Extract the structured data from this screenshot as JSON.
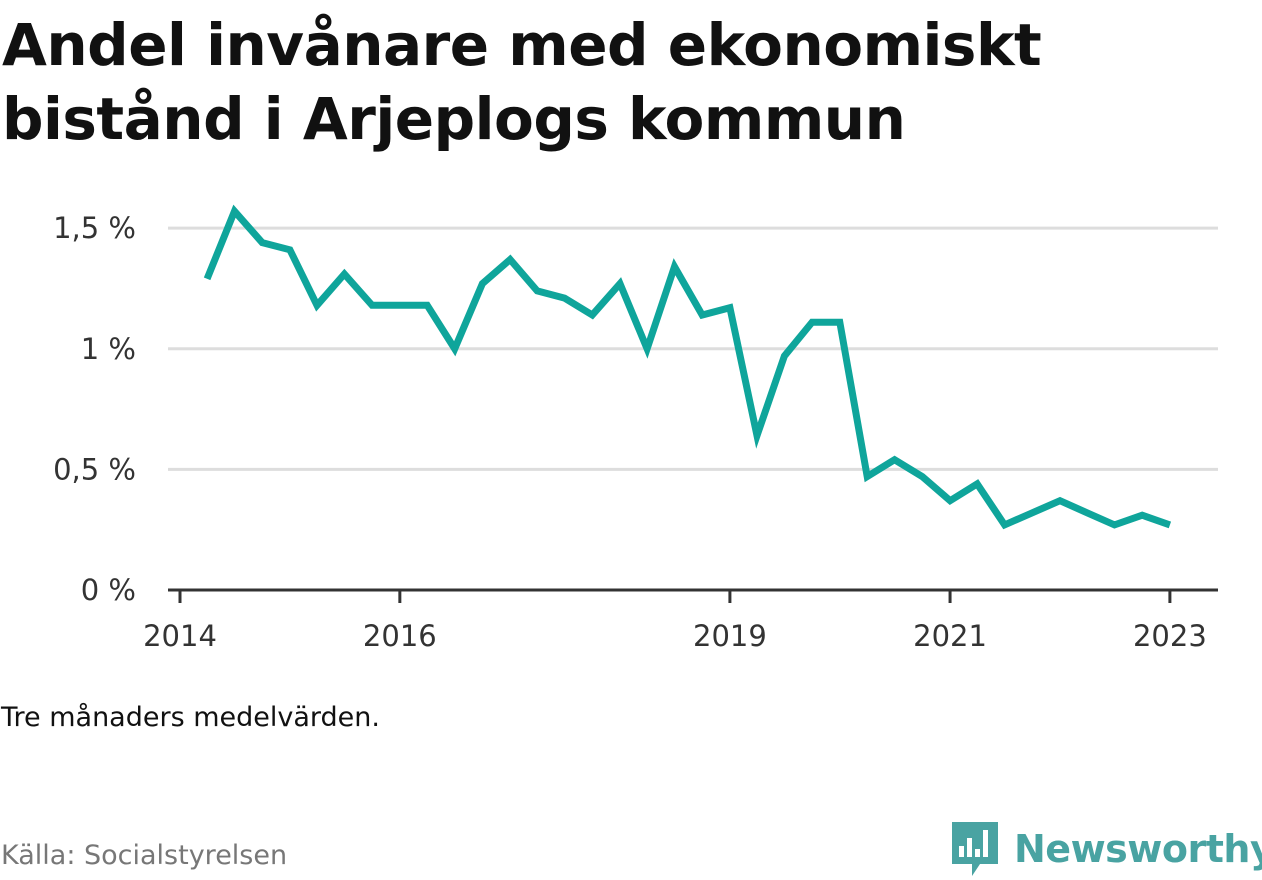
{
  "title": "Andel invånare med ekonomiskt bistånd i Arjeplogs kommun",
  "note": "Tre månaders medelvärden.",
  "source": "Källa: Socialstyrelsen",
  "brand": {
    "name": "Newsworthy",
    "icon": "newsworthy-chart-bubble-icon",
    "color": "#49a3a2"
  },
  "colors": {
    "line": "#0fa59b",
    "grid": "#dddddd",
    "axis": "#333333"
  },
  "chart_data": {
    "type": "line",
    "title": "Andel invånare med ekonomiskt bistånd i Arjeplogs kommun",
    "xlabel": "",
    "ylabel": "",
    "xlim": [
      "2014-01-01",
      "2023-04-01"
    ],
    "ylim": [
      0,
      1.6
    ],
    "yticks": [
      0,
      0.5,
      1,
      1.5
    ],
    "ytick_labels": [
      "0 %",
      "0,5 %",
      "1 %",
      "1,5 %"
    ],
    "xticks": [
      "2014-01-01",
      "2016-01-01",
      "2019-01-01",
      "2021-01-01",
      "2023-01-01"
    ],
    "xtick_labels": [
      "2014",
      "2016",
      "2019",
      "2021",
      "2023"
    ],
    "grid": true,
    "legend": "none",
    "series": [
      {
        "x": [
          "2014-04-01",
          "2014-07-01",
          "2014-10-01",
          "2015-01-01",
          "2015-04-01",
          "2015-07-01",
          "2015-10-01",
          "2016-01-01",
          "2016-04-01",
          "2016-07-01",
          "2016-10-01",
          "2017-01-01",
          "2017-04-01",
          "2017-07-01",
          "2017-10-01",
          "2018-01-01",
          "2018-04-01",
          "2018-07-01",
          "2018-10-01",
          "2019-01-01",
          "2019-04-01",
          "2019-07-01",
          "2019-10-01",
          "2020-01-01",
          "2020-04-01",
          "2020-07-01",
          "2020-10-01",
          "2021-01-01",
          "2021-04-01",
          "2021-07-01",
          "2021-10-01",
          "2022-01-01",
          "2022-04-01",
          "2022-07-01",
          "2022-10-01",
          "2023-01-01"
        ],
        "values": [
          1.29,
          1.57,
          1.44,
          1.41,
          1.18,
          1.31,
          1.18,
          1.18,
          1.18,
          1.0,
          1.27,
          1.37,
          1.24,
          1.21,
          1.14,
          1.27,
          1.0,
          1.34,
          1.14,
          1.17,
          0.64,
          0.97,
          1.11,
          1.11,
          0.47,
          0.54,
          0.47,
          0.37,
          0.44,
          0.27,
          0.32,
          0.37,
          0.32,
          0.27,
          0.31,
          0.27
        ]
      }
    ]
  }
}
